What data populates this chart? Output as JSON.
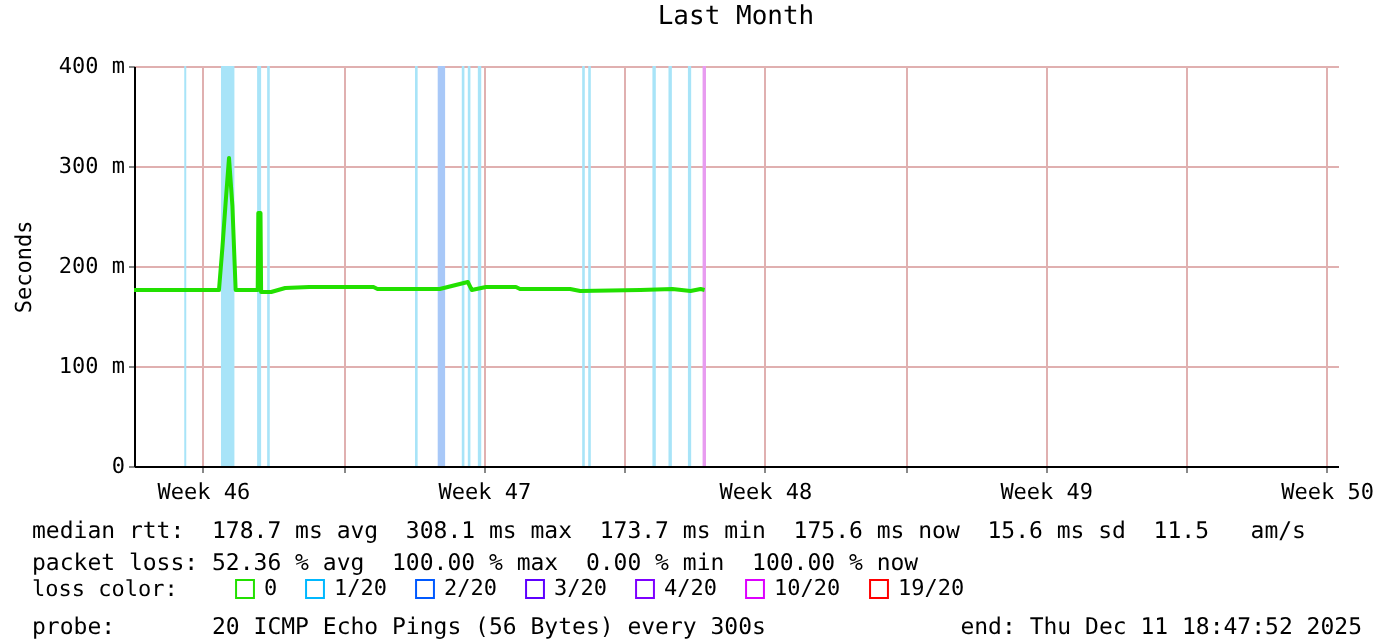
{
  "chart_data": {
    "type": "line",
    "title": "Last Month",
    "ylabel": "Seconds",
    "legend_title": "loss color:",
    "xlim": [
      "2025-11-11T18:47",
      "2025-12-11T18:47"
    ],
    "xticks": [
      {
        "value": "2025-11-13T12:00",
        "label": "Week 46"
      },
      {
        "value": "2025-11-17T00:00",
        "label": null
      },
      {
        "value": "2025-11-20T12:00",
        "label": "Week 47"
      },
      {
        "value": "2025-11-24T00:00",
        "label": null
      },
      {
        "value": "2025-11-27T12:00",
        "label": "Week 48"
      },
      {
        "value": "2025-12-01T00:00",
        "label": null
      },
      {
        "value": "2025-12-04T12:00",
        "label": "Week 49"
      },
      {
        "value": "2025-12-08T00:00",
        "label": null
      },
      {
        "value": "2025-12-11T12:00",
        "label": "Week 50"
      }
    ],
    "ylim": [
      0,
      400
    ],
    "yticks": [
      {
        "value": 0,
        "label": "0"
      },
      {
        "value": 100,
        "label": "100 m"
      },
      {
        "value": 200,
        "label": "200 m"
      },
      {
        "value": 300,
        "label": "300 m"
      },
      {
        "value": 400,
        "label": "400 m"
      }
    ],
    "grid": true,
    "legend": "bottom",
    "marker": "none",
    "line_style": "solid",
    "series": [
      {
        "name": "0",
        "color": "#22e000",
        "x": [
          "2025-11-11T18:47",
          "2025-11-13T21:36",
          "2025-11-13T23:38",
          "2025-11-14T01:34",
          "2025-11-14T03:36",
          "2025-11-14T05:38",
          "2025-11-14T07:34",
          "2025-11-14T20:46",
          "2025-11-14T21:07",
          "2025-11-14T22:26",
          "2025-11-14T22:48",
          "2025-11-15T04:48",
          "2025-11-15T13:12",
          "2025-11-16T03:36",
          "2025-11-17T18:00",
          "2025-11-17T20:24",
          "2025-11-19T09:36",
          "2025-11-20T02:24",
          "2025-11-20T04:48",
          "2025-11-20T13:12",
          "2025-11-21T07:12",
          "2025-11-21T09:36",
          "2025-11-22T15:36",
          "2025-11-22T21:36",
          "2025-11-24T09:36",
          "2025-11-25T04:48",
          "2025-11-25T15:36",
          "2025-11-25T21:36",
          "2025-11-26T00:00"
        ],
        "values": [
          176,
          176,
          218,
          263,
          308,
          260,
          176,
          176,
          253,
          253,
          174,
          174,
          178,
          179,
          179,
          177,
          177,
          184,
          176,
          179,
          179,
          177,
          177,
          175,
          176,
          177,
          175,
          177,
          176
        ]
      },
      {
        "name": "1/20",
        "color": "#00b8ff"
      },
      {
        "name": "2/20",
        "color": "#0059ff"
      },
      {
        "name": "3/20",
        "color": "#5e00ff"
      },
      {
        "name": "4/20",
        "color": "#7e00ff"
      },
      {
        "name": "10/20",
        "color": "#dd00ff"
      },
      {
        "name": "19/20",
        "color": "#ff0000"
      }
    ],
    "bands": [
      {
        "axis": "x",
        "from": "2025-11-13T00:50",
        "to": "2025-11-13T02:02",
        "color": "#a8e4f8"
      },
      {
        "axis": "x",
        "from": "2025-11-13T22:48",
        "to": "2025-11-14T06:50",
        "color": "#a8e4f8"
      },
      {
        "axis": "x",
        "from": "2025-11-14T20:24",
        "to": "2025-11-14T22:48",
        "color": "#a8e4f8"
      },
      {
        "axis": "x",
        "from": "2025-11-15T02:24",
        "to": "2025-11-15T03:58",
        "color": "#a8e4f8"
      },
      {
        "axis": "x",
        "from": "2025-11-18T18:50",
        "to": "2025-11-18T20:24",
        "color": "#a8e4f8"
      },
      {
        "axis": "x",
        "from": "2025-11-19T08:24",
        "to": "2025-11-19T12:50",
        "color": "#a8c8f8"
      },
      {
        "axis": "x",
        "from": "2025-11-19T22:48",
        "to": "2025-11-20T00:22",
        "color": "#a8e4f8"
      },
      {
        "axis": "x",
        "from": "2025-11-20T02:24",
        "to": "2025-11-20T03:58",
        "color": "#a8e4f8"
      },
      {
        "axis": "x",
        "from": "2025-11-20T08:24",
        "to": "2025-11-20T10:26",
        "color": "#a8e4f8"
      },
      {
        "axis": "x",
        "from": "2025-11-22T22:48",
        "to": "2025-11-23T00:22",
        "color": "#a8e4f8"
      },
      {
        "axis": "x",
        "from": "2025-11-23T02:24",
        "to": "2025-11-23T03:58",
        "color": "#a8e4f8"
      },
      {
        "axis": "x",
        "from": "2025-11-24T16:48",
        "to": "2025-11-24T18:50",
        "color": "#a8e4f8"
      },
      {
        "axis": "x",
        "from": "2025-11-25T02:24",
        "to": "2025-11-25T04:26",
        "color": "#a8e4f8"
      },
      {
        "axis": "x",
        "from": "2025-11-25T14:02",
        "to": "2025-11-25T15:58",
        "color": "#a8e4f8"
      },
      {
        "axis": "x",
        "from": "2025-11-25T22:48",
        "to": "2025-11-26T00:50",
        "color": "#e89cf0"
      }
    ],
    "annotations": [
      "median rtt:  178.7 ms avg  308.1 ms max  173.7 ms min  175.6 ms now  15.6 ms sd  11.5   am/s",
      "packet loss: 52.36 % avg  100.00 % max  0.00 % min  100.00 % now",
      "probe:       20 ICMP Echo Pings (56 Bytes) every 300s",
      "end: Thu Dec 11 18:47:52 2025"
    ]
  }
}
